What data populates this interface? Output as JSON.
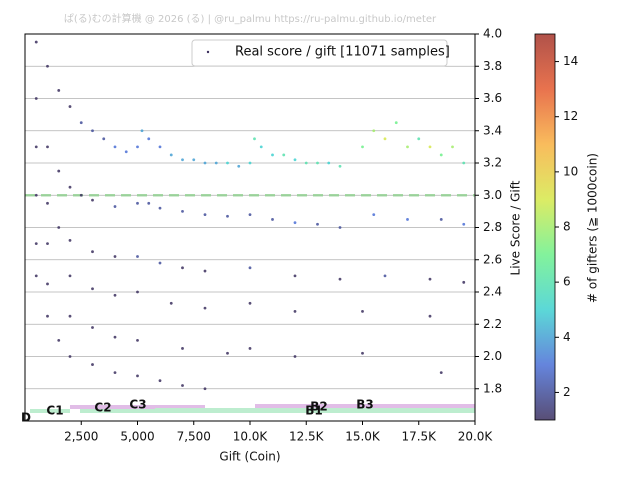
{
  "chart_data": {
    "type": "scatter",
    "title": "ぱ(る)むの計算機 @ 2026 (る) | @ru_palmu  https://ru-palmu.github.io/meter",
    "xlabel": "Gift (Coin)",
    "ylabel": "Live Score / Gift",
    "legend": "Real score / gift [11071 samples]",
    "legend_loc": "upper right",
    "colorbar_label": "# of gifters (≧ 1000coin)",
    "grid": true,
    "hline": 3.0,
    "hline_color": "#8fd18f",
    "xlim": [
      0,
      20000
    ],
    "ylim": [
      1.6,
      4.0
    ],
    "clim": [
      1,
      15
    ],
    "cmap_colors": [
      "#3b2f5e",
      "#4a6fd6",
      "#3fd1d0",
      "#6df08a",
      "#d6e84a",
      "#f8b040",
      "#e45a2f",
      "#a3332a"
    ],
    "xticks": [
      {
        "value": 2500,
        "label": "2,500"
      },
      {
        "value": 5000,
        "label": "5,000"
      },
      {
        "value": 7500,
        "label": "7,500"
      },
      {
        "value": 10000,
        "label": "10.0K"
      },
      {
        "value": 12500,
        "label": "12.5K"
      },
      {
        "value": 15000,
        "label": "15.0K"
      },
      {
        "value": 17500,
        "label": "17.5K"
      },
      {
        "value": 20000,
        "label": "20.0K"
      }
    ],
    "yticks": [
      1.8,
      {
        "value": 2,
        "label": "2.0"
      },
      2.2,
      2.4,
      2.6,
      2.8,
      {
        "value": 3,
        "label": "3.0"
      },
      3.2,
      3.4,
      3.6,
      3.8,
      {
        "value": 4,
        "label": "4.0"
      }
    ],
    "cticks": [
      2,
      4,
      6,
      8,
      10,
      12,
      14
    ],
    "rank_labels": [
      "D",
      "C1",
      "C2",
      "C3",
      "B1",
      "B2",
      "B3"
    ],
    "x": [
      500,
      1000,
      1500,
      2000,
      2500,
      3000,
      3500,
      4000,
      4500,
      5000,
      5200,
      5500,
      6000,
      6500,
      7000,
      7500,
      8000,
      8500,
      9000,
      9500,
      10000,
      10200,
      10500,
      11000,
      11500,
      12000,
      12500,
      13000,
      13500,
      14000,
      15000,
      15500,
      16000,
      16500,
      17000,
      17500,
      18000,
      18500,
      19000,
      19500,
      500,
      1000,
      1500,
      2000,
      2500,
      3000,
      4000,
      5000,
      5500,
      6000,
      7000,
      8000,
      9000,
      10000,
      11000,
      12000,
      13000,
      14000,
      15500,
      17000,
      18500,
      19500,
      500,
      1000,
      1500,
      2000,
      3000,
      4000,
      5000,
      6000,
      7000,
      8000,
      10000,
      12000,
      14000,
      16000,
      18000,
      19500,
      500,
      1000,
      2000,
      3000,
      4000,
      5000,
      6500,
      8000,
      10000,
      12000,
      15000,
      18000,
      500,
      1000,
      2000,
      3000,
      4000,
      5000,
      7000,
      9000,
      10000,
      12000,
      15000,
      18500,
      500,
      1000,
      1500,
      2000,
      3000,
      4000,
      5000,
      6000,
      7000,
      8000
    ],
    "y": [
      3.95,
      3.8,
      3.65,
      3.55,
      3.45,
      3.4,
      3.35,
      3.3,
      3.27,
      3.3,
      3.4,
      3.35,
      3.3,
      3.25,
      3.22,
      3.22,
      3.2,
      3.2,
      3.2,
      3.18,
      3.2,
      3.35,
      3.3,
      3.25,
      3.25,
      3.22,
      3.2,
      3.2,
      3.2,
      3.18,
      3.3,
      3.4,
      3.35,
      3.45,
      3.3,
      3.35,
      3.3,
      3.25,
      3.3,
      3.2,
      3.6,
      3.3,
      3.15,
      3.05,
      3.0,
      2.97,
      2.93,
      2.95,
      2.95,
      2.92,
      2.9,
      2.88,
      2.87,
      2.88,
      2.85,
      2.83,
      2.82,
      2.8,
      2.88,
      2.85,
      2.85,
      2.82,
      3.3,
      2.95,
      2.8,
      2.72,
      2.65,
      2.62,
      2.62,
      2.58,
      2.55,
      2.53,
      2.55,
      2.5,
      2.48,
      2.5,
      2.48,
      2.46,
      3.0,
      2.7,
      2.5,
      2.42,
      2.38,
      2.4,
      2.33,
      2.3,
      2.33,
      2.28,
      2.28,
      2.25,
      2.7,
      2.45,
      2.25,
      2.18,
      2.12,
      2.1,
      2.05,
      2.02,
      2.05,
      2.0,
      2.02,
      1.9,
      2.5,
      2.25,
      2.1,
      2.0,
      1.95,
      1.9,
      1.88,
      1.85,
      1.82,
      1.8
    ],
    "c": [
      1,
      1,
      1,
      1,
      2,
      2,
      2,
      3,
      3,
      3,
      4,
      3,
      3,
      4,
      4,
      4,
      4,
      4,
      5,
      4,
      5,
      6,
      5,
      5,
      6,
      5,
      6,
      6,
      5,
      6,
      7,
      8,
      9,
      7,
      8,
      6,
      9,
      7,
      8,
      6,
      1,
      1,
      1,
      1,
      1,
      1,
      2,
      2,
      2,
      2,
      2,
      2,
      2,
      2,
      2,
      3,
      2,
      2,
      3,
      3,
      2,
      3,
      1,
      1,
      1,
      1,
      1,
      1,
      2,
      2,
      1,
      1,
      2,
      1,
      1,
      2,
      1,
      1,
      1,
      1,
      1,
      1,
      1,
      1,
      1,
      1,
      1,
      1,
      1,
      1,
      1,
      1,
      1,
      1,
      1,
      1,
      1,
      1,
      1,
      1,
      1,
      1,
      1,
      1,
      1,
      1,
      1,
      1,
      1,
      1,
      1,
      1
    ]
  }
}
